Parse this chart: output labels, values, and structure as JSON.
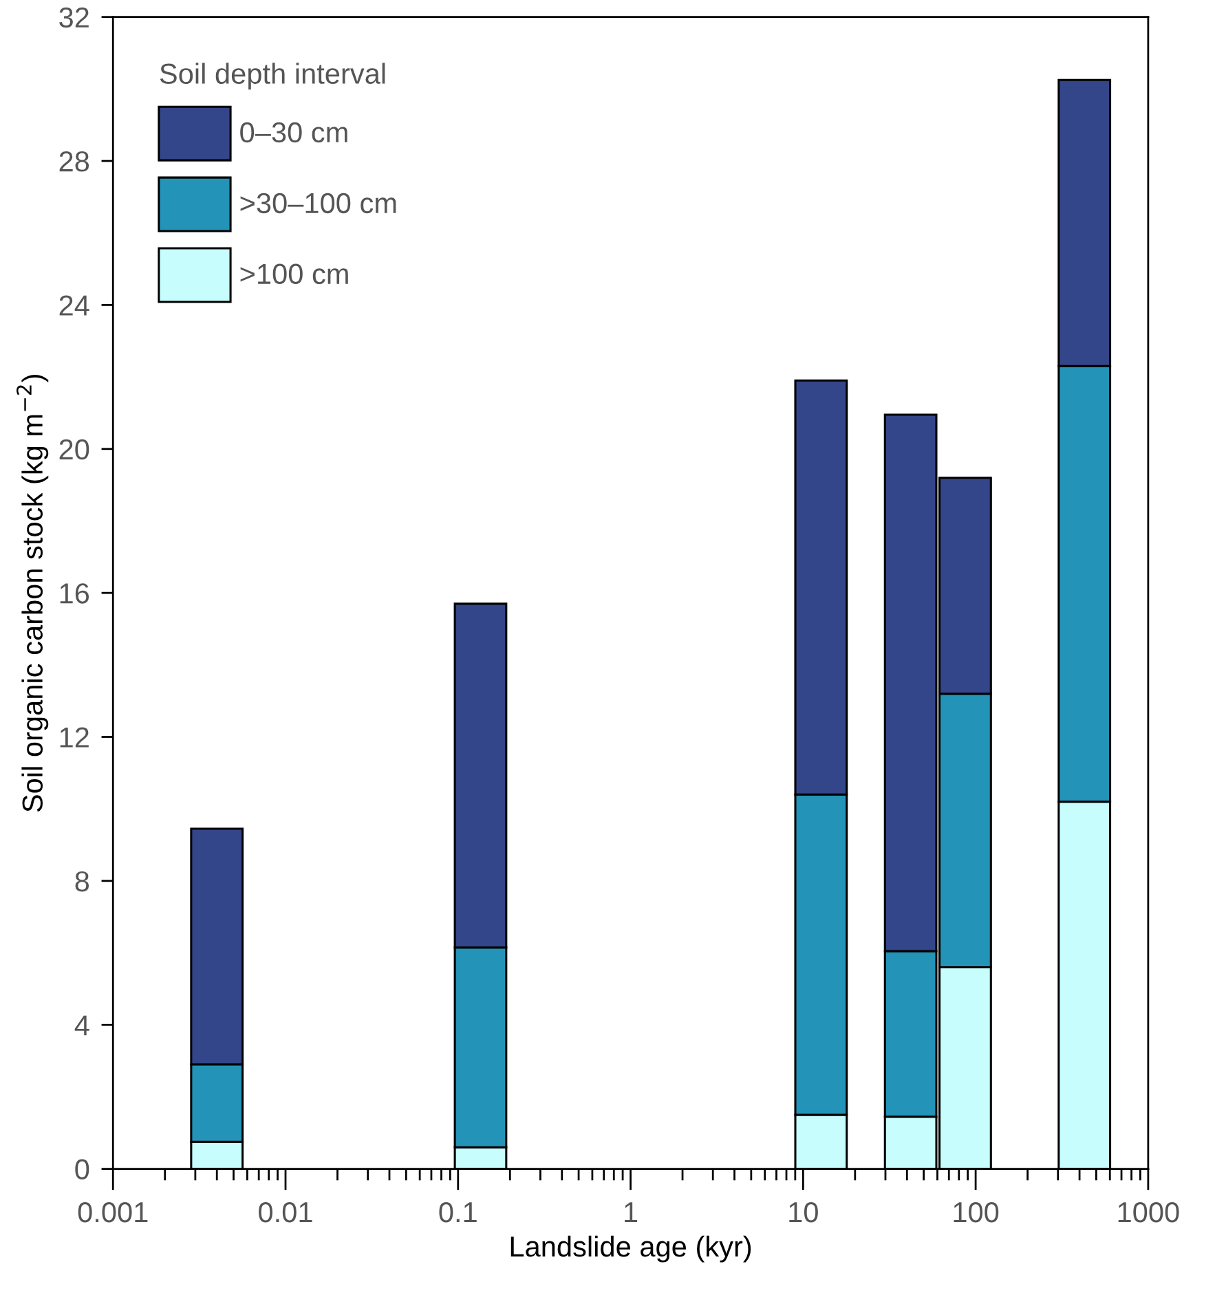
{
  "chart_data": {
    "type": "bar",
    "stacked": true,
    "xlabel": "Landslide age (kyr)",
    "ylabel": "Soil organic carbon stock (kg m$^{−2}$)",
    "legend_title": "Soil depth interval",
    "legend": "top left",
    "log": "x",
    "x": [
      0.004,
      0.135,
      12.7,
      42,
      87,
      427
    ],
    "series": [
      {
        "name": ">100 cm",
        "color": "#c8fdfd",
        "values": [
          0.75,
          0.6,
          1.5,
          1.45,
          5.6,
          10.2
        ]
      },
      {
        "name": ">30–100 cm",
        "color": "#2394b8",
        "values": [
          2.15,
          5.55,
          8.9,
          4.6,
          7.6,
          12.1
        ]
      },
      {
        "name": "0–30 cm",
        "color": "#34468a",
        "values": [
          6.55,
          9.55,
          11.5,
          14.9,
          6.0,
          7.95
        ]
      }
    ],
    "xlim": [
      0.001,
      1000
    ],
    "xticks": [
      {
        "value": 0.001,
        "label": "0.001"
      },
      {
        "value": 0.01,
        "label": "0.01"
      },
      {
        "value": 0.1,
        "label": "0.1"
      },
      {
        "value": 1,
        "label": "1"
      },
      {
        "value": 10,
        "label": "10"
      },
      {
        "value": 100,
        "label": "100"
      },
      {
        "value": 1000,
        "label": "1000"
      }
    ],
    "ylim": [
      0,
      32
    ],
    "yticks": [
      0,
      4,
      8,
      12,
      16,
      20,
      24,
      28,
      32
    ],
    "grid": false
  }
}
